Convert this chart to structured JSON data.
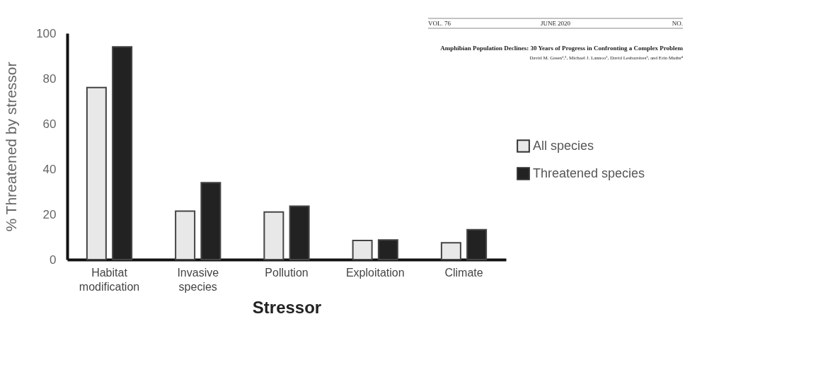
{
  "chart_data": {
    "type": "bar",
    "xlabel": "Stressor",
    "ylabel": "% Threatened by stressor",
    "categories": [
      "Habitat modification",
      "Invasive species",
      "Pollution",
      "Exploitation",
      "Climate"
    ],
    "series": [
      {
        "name": "All species",
        "color": "#e8e8e8",
        "values": [
          76,
          21.4,
          21,
          8.4,
          7.4
        ]
      },
      {
        "name": "Threatened species",
        "color": "#222222",
        "values": [
          94,
          34,
          23.6,
          8.7,
          13.2
        ]
      }
    ],
    "ylim": [
      0,
      100
    ],
    "yticks": [
      0,
      20,
      40,
      60,
      80,
      100
    ],
    "grid": false,
    "legend": "right",
    "annotations": [
      "VOL. 76",
      "JUNE 2020",
      "NO.",
      "Amphibian Population Declines: 30 Years of Progress in Confronting a Complex Problem",
      "David M. Green¹,⁵, Michael J. Lannoo², David Lesbarrères³, and Erin Muths⁴"
    ]
  }
}
